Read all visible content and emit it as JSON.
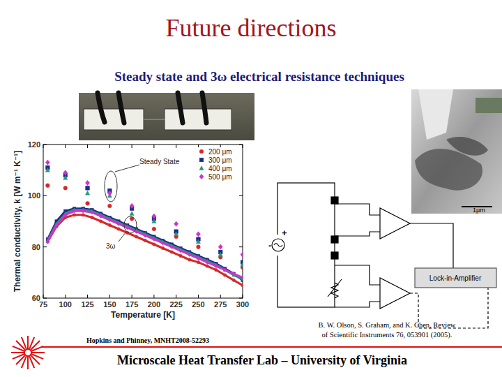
{
  "slide": {
    "title": "Future directions",
    "subtitle": "Steady state and 3ω electrical resistance techniques",
    "chart_citation": "Hopkins and Phinney, MNHT2008-52293",
    "circuit_citation": [
      "B. W. Olson, S. Graham, and K. Chen, Review",
      "of Scientific Instruments 76, 053901 (2005)."
    ],
    "circuit_labels": {
      "plus": "+",
      "minus": "-",
      "box": "Lock-in-Amplifier"
    },
    "scale_bar": "1μm",
    "footer": "Microscale Heat Transfer Lab – University of Virginia"
  },
  "chart_data": {
    "type": "line",
    "x_label": "Temperature [K]",
    "y_label": "Thermal conductivity, k [W m⁻¹ K⁻¹]",
    "x": [
      80,
      90,
      100,
      110,
      120,
      130,
      140,
      150,
      160,
      170,
      180,
      190,
      200,
      210,
      220,
      230,
      240,
      250,
      260,
      270,
      280,
      290,
      300
    ],
    "series": [
      {
        "name": "200 μm",
        "color": "#d42a2a",
        "marker": "circle",
        "values": [
          82,
          88,
          91.5,
          92.5,
          92.5,
          91.5,
          90,
          88.5,
          87,
          85.5,
          84,
          82.5,
          81,
          79.5,
          78,
          76.5,
          75,
          74,
          72.5,
          71,
          69,
          67,
          65
        ],
        "steady_state": {
          "x": [
            80,
            100,
            125,
            150,
            175,
            200,
            225,
            250,
            275,
            300
          ],
          "values": [
            104,
            103,
            97,
            96,
            91,
            87,
            84,
            80,
            76,
            72
          ]
        }
      },
      {
        "name": "300 μm",
        "color": "#1c2a8c",
        "marker": "square",
        "values": [
          83,
          90,
          94,
          95,
          95,
          94.5,
          93,
          91.5,
          90,
          88.5,
          87,
          85.5,
          84,
          82.5,
          81,
          79.5,
          78,
          76.5,
          75,
          73.5,
          71.5,
          69.5,
          67
        ],
        "steady_state": {
          "x": [
            80,
            100,
            125,
            150,
            175,
            200,
            225,
            250,
            275,
            300
          ],
          "values": [
            111,
            108,
            103,
            102,
            95,
            91,
            86,
            83,
            78,
            74
          ]
        }
      },
      {
        "name": "400 μm",
        "color": "#1e9a7a",
        "marker": "triangle",
        "values": [
          82.5,
          89,
          93,
          94.5,
          94.5,
          94,
          92.5,
          91,
          89.5,
          88,
          86.5,
          85,
          83.5,
          82,
          80.5,
          79,
          77.5,
          76,
          74.5,
          73,
          71,
          69,
          67.5
        ],
        "steady_state": {
          "x": [
            80,
            100,
            125,
            150,
            175,
            200,
            225,
            250,
            275,
            300
          ],
          "values": [
            110,
            107,
            101,
            100,
            93,
            90,
            85,
            82,
            77,
            73
          ]
        }
      },
      {
        "name": "500 μm",
        "color": "#cc33cc",
        "marker": "diamond",
        "values": [
          82,
          88.5,
          92.5,
          94,
          94,
          93.5,
          92,
          90.5,
          89,
          87.5,
          86,
          84.5,
          83,
          81.5,
          80,
          78.5,
          77,
          75.5,
          74,
          72.5,
          71,
          69.5,
          68
        ],
        "steady_state": {
          "x": [
            80,
            100,
            125,
            150,
            175,
            200,
            225,
            250,
            275,
            300
          ],
          "values": [
            113,
            109,
            105,
            101,
            96,
            92,
            89,
            85,
            80,
            77
          ]
        }
      }
    ],
    "xlim": [
      75,
      300
    ],
    "xticks": [
      75,
      100,
      125,
      150,
      175,
      200,
      225,
      250,
      275,
      300
    ],
    "ylim": [
      60,
      120
    ],
    "yticks": [
      60,
      80,
      100,
      120
    ],
    "grid": false,
    "legend": "upper right",
    "annotations": [
      {
        "text": "Steady State"
      },
      {
        "text": "3ω"
      }
    ]
  }
}
